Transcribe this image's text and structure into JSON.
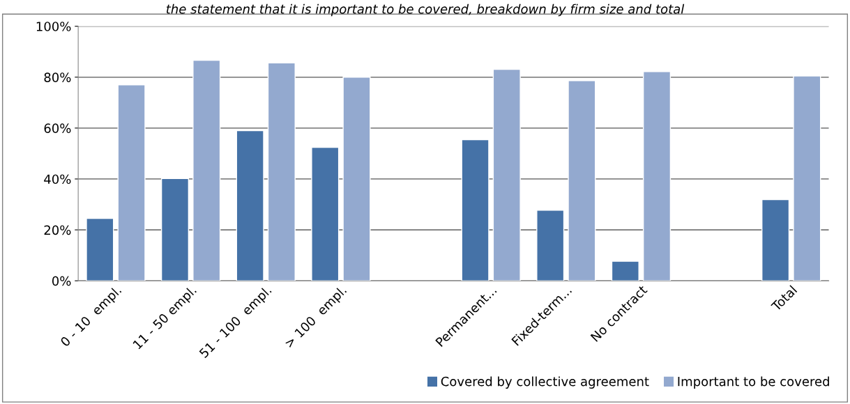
{
  "chart_data": {
    "type": "bar",
    "title": "the statement that it is important to be covered, breakdown by firm size and total",
    "categories": [
      "0 - 10  empl.",
      "11 - 50 empl.",
      "51 - 100  empl.",
      "> 100  empl.",
      null,
      "Permanent...",
      "Fixed-term...",
      "No contract",
      null,
      "Total"
    ],
    "series": [
      {
        "name": "Covered by collective agreement",
        "color": "#4572a7",
        "values": [
          24.5,
          40.2,
          59.0,
          52.4,
          null,
          55.4,
          27.7,
          7.7,
          null,
          31.9
        ]
      },
      {
        "name": "Important to be covered",
        "color": "#93a9cf",
        "values": [
          77.0,
          86.6,
          85.6,
          80.0,
          null,
          83.1,
          78.6,
          82.2,
          null,
          80.5
        ]
      }
    ],
    "ylim": [
      0,
      100
    ],
    "yticks": [
      {
        "value": 0,
        "label": "0%"
      },
      {
        "value": 20,
        "label": "20%"
      },
      {
        "value": 40,
        "label": "40%"
      },
      {
        "value": 60,
        "label": "60%"
      },
      {
        "value": 80,
        "label": "80%"
      },
      {
        "value": 100,
        "label": "100%"
      }
    ],
    "grid": "y",
    "legend": "bottom right"
  }
}
